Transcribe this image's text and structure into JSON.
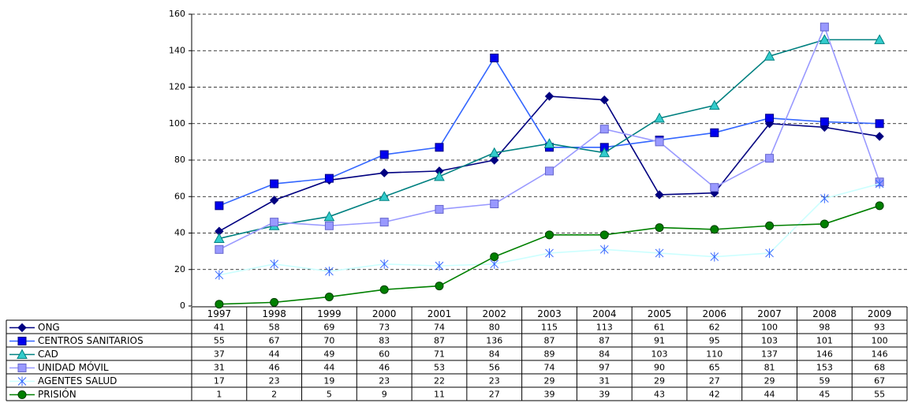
{
  "chart_data": {
    "type": "line",
    "categories": [
      "1997",
      "1998",
      "1999",
      "2000",
      "2001",
      "2002",
      "2003",
      "2004",
      "2005",
      "2006",
      "2007",
      "2008",
      "2009"
    ],
    "ylim": [
      0,
      160
    ],
    "yticks": [
      0,
      20,
      40,
      60,
      80,
      100,
      120,
      140,
      160
    ],
    "grid": true,
    "series": [
      {
        "name": "ONG",
        "color": "#000080",
        "marker": "diamond",
        "values": [
          41,
          58,
          69,
          73,
          74,
          80,
          115,
          113,
          61,
          62,
          100,
          98,
          93
        ]
      },
      {
        "name": "CENTROS SANITARIOS",
        "color": "#3366ff",
        "marker": "square",
        "values": [
          55,
          67,
          70,
          83,
          87,
          136,
          87,
          87,
          91,
          95,
          103,
          101,
          100
        ]
      },
      {
        "name": "CAD",
        "color": "#008080",
        "marker": "triangle",
        "values": [
          37,
          44,
          49,
          60,
          71,
          84,
          89,
          84,
          103,
          110,
          137,
          146,
          146
        ]
      },
      {
        "name": "UNIDAD MÓVIL",
        "color": "#9999ff",
        "marker": "square-light",
        "values": [
          31,
          46,
          44,
          46,
          53,
          56,
          74,
          97,
          90,
          65,
          81,
          153,
          68
        ]
      },
      {
        "name": "AGENTES SALUD",
        "color": "#ccffff",
        "marker": "star",
        "values": [
          17,
          23,
          19,
          23,
          22,
          23,
          29,
          31,
          29,
          27,
          29,
          59,
          67
        ]
      },
      {
        "name": "PRISIÓN",
        "color": "#008000",
        "marker": "circle",
        "values": [
          1,
          2,
          5,
          9,
          11,
          27,
          39,
          39,
          43,
          42,
          44,
          45,
          55
        ]
      }
    ]
  }
}
